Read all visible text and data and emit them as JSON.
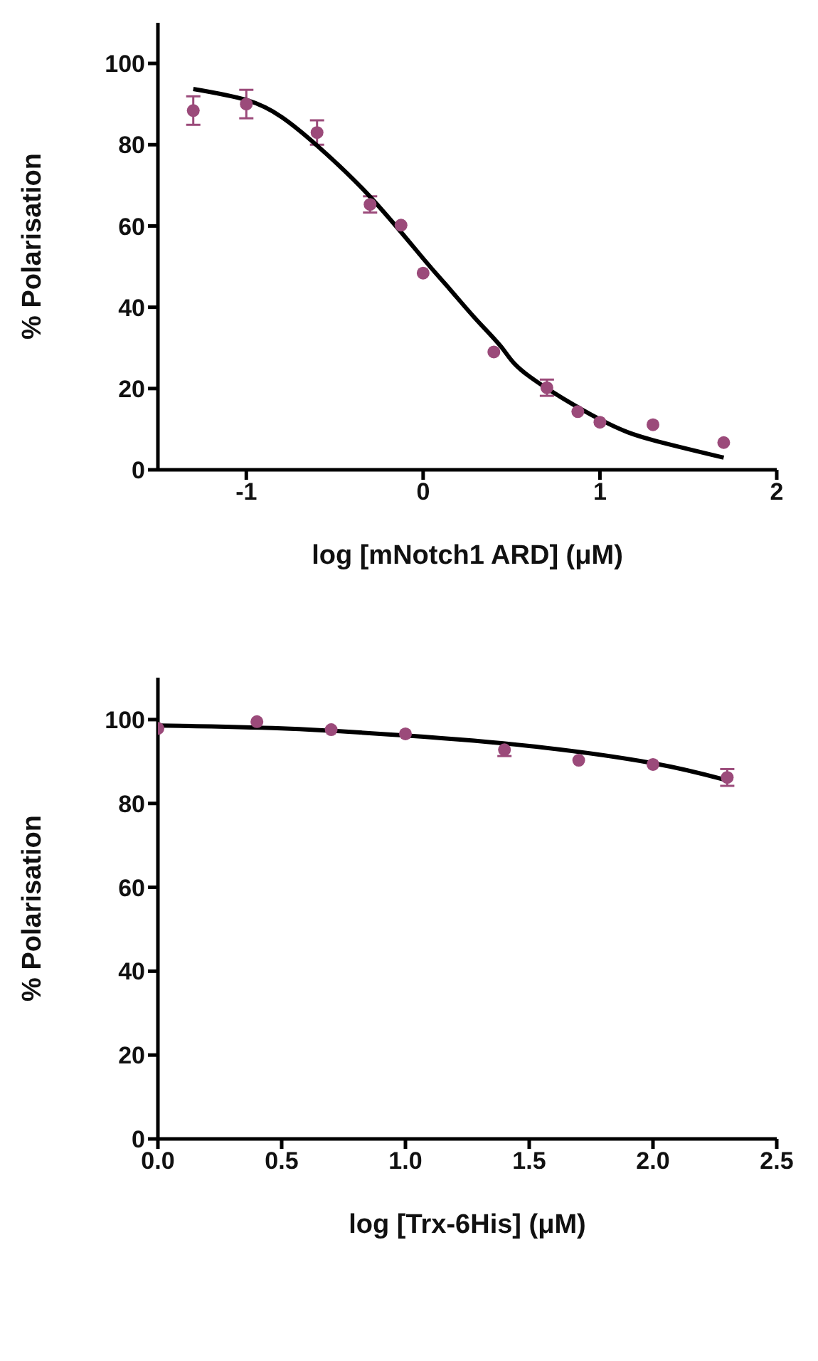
{
  "chart_data": [
    {
      "type": "scatter",
      "xlabel": "log  [mNotch1 ARD]   (μM)",
      "ylabel": "% Polarisation",
      "xlim": [
        -1.5,
        2
      ],
      "ylim": [
        0,
        110
      ],
      "xticks": [
        -1,
        0,
        1,
        2
      ],
      "yticks": [
        0,
        20,
        40,
        60,
        80,
        100
      ],
      "series": [
        {
          "marker": "circle",
          "color": "#9b4a7a",
          "x": [
            -1.3,
            -1.0,
            -0.6,
            -0.3,
            -0.125,
            0,
            0.4,
            0.7,
            0.875,
            1.0,
            1.3,
            1.7
          ],
          "values": [
            88.4,
            90,
            83,
            65.3,
            60.2,
            48.4,
            29,
            20.2,
            14.3,
            11.7,
            11.1,
            6.7
          ],
          "errors": [
            3.5,
            3.5,
            3,
            2,
            null,
            null,
            null,
            2,
            null,
            null,
            null,
            null
          ]
        },
        {
          "type": "line",
          "color": "#000000",
          "x": [
            -1.3,
            -1.0,
            -0.8,
            -0.6,
            -0.3,
            0,
            0.15,
            0.3,
            0.45,
            0.6,
            1.0,
            1.3,
            1.7
          ],
          "values": [
            93.7,
            91,
            86.8,
            79.8,
            67.2,
            52,
            44.5,
            37,
            29.8,
            23,
            12.4,
            7.3,
            3
          ]
        }
      ]
    },
    {
      "type": "scatter",
      "xlabel": "log [Trx-6His]    (μM)",
      "ylabel": "% Polarisation",
      "xlim": [
        0,
        2.5
      ],
      "ylim": [
        0,
        110
      ],
      "xticks": [
        {
          "value": 0,
          "label": "0.0"
        },
        0.5,
        {
          "value": 1,
          "label": "1.0"
        },
        1.5,
        {
          "value": 2,
          "label": "2.0"
        },
        2.5
      ],
      "yticks": [
        0,
        20,
        40,
        60,
        80,
        100
      ],
      "series": [
        {
          "marker": "circle",
          "color": "#9b4a7a",
          "x": [
            0,
            0.4,
            0.7,
            1.0,
            1.4,
            1.7,
            2.0,
            2.3
          ],
          "values": [
            97.9,
            99.5,
            97.6,
            96.6,
            92.8,
            90.3,
            89.3,
            86.2
          ],
          "errors": [
            null,
            null,
            null,
            null,
            1.5,
            null,
            null,
            2
          ]
        },
        {
          "type": "line",
          "color": "#000000",
          "x": [
            0,
            0.5,
            1.0,
            1.5,
            2.0,
            2.3
          ],
          "values": [
            98.6,
            97.9,
            96.2,
            93.7,
            89.6,
            85.5
          ]
        }
      ]
    }
  ]
}
